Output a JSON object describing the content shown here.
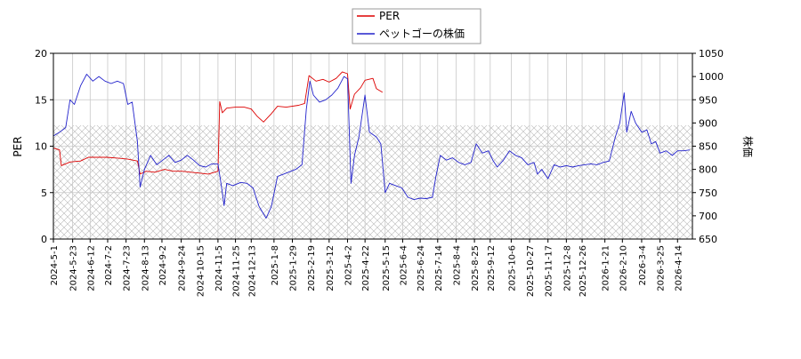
{
  "chart_data": {
    "type": "line",
    "xlabel": "",
    "ylabel_left": "PER",
    "ylabel_right": "株価",
    "ylim_left": [
      0,
      20
    ],
    "ylim_right": [
      650,
      1050
    ],
    "yticks_left": [
      0,
      5,
      10,
      15,
      20
    ],
    "yticks_right": [
      650,
      700,
      750,
      800,
      850,
      900,
      950,
      1000,
      1050
    ],
    "xlim": [
      "2024-05-01",
      "2026-05-01"
    ],
    "xticks": [
      "2024-5-1",
      "2024-5-23",
      "2024-6-12",
      "2024-7-2",
      "2024-7-23",
      "2024-8-13",
      "2024-9-2",
      "2024-9-24",
      "2024-10-15",
      "2024-11-5",
      "2024-11-25",
      "2024-12-13",
      "2025-1-8",
      "2025-1-29",
      "2025-2-19",
      "2025-3-12",
      "2025-4-2",
      "2025-4-22",
      "2025-5-15",
      "2025-6-4",
      "2025-6-24",
      "2025-7-14",
      "2025-8-4",
      "2025-8-25",
      "2025-9-12",
      "2025-10-6",
      "2025-10-27",
      "2025-11-17",
      "2025-12-8",
      "2025-12-26",
      "2026-1-21",
      "2026-2-10",
      "2026-3-4",
      "2026-3-25",
      "2026-4-14"
    ],
    "grid": true,
    "legend_position": "top-center",
    "hatched_band": [
      650,
      895
    ],
    "series": [
      {
        "name": "PER",
        "axis": "left",
        "color": "#dd0000",
        "points": [
          [
            "2024-05-01",
            9.8
          ],
          [
            "2024-05-08",
            9.6
          ],
          [
            "2024-05-10",
            7.9
          ],
          [
            "2024-05-20",
            8.3
          ],
          [
            "2024-06-01",
            8.4
          ],
          [
            "2024-06-10",
            8.8
          ],
          [
            "2024-06-20",
            8.8
          ],
          [
            "2024-07-01",
            8.8
          ],
          [
            "2024-07-15",
            8.7
          ],
          [
            "2024-07-25",
            8.6
          ],
          [
            "2024-08-05",
            8.4
          ],
          [
            "2024-08-08",
            7.0
          ],
          [
            "2024-08-15",
            7.3
          ],
          [
            "2024-08-25",
            7.2
          ],
          [
            "2024-09-05",
            7.5
          ],
          [
            "2024-09-15",
            7.3
          ],
          [
            "2024-09-25",
            7.3
          ],
          [
            "2024-10-05",
            7.2
          ],
          [
            "2024-10-15",
            7.1
          ],
          [
            "2024-10-25",
            7.0
          ],
          [
            "2024-11-05",
            7.3
          ],
          [
            "2024-11-07",
            14.8
          ],
          [
            "2024-11-10",
            13.6
          ],
          [
            "2024-11-15",
            14.1
          ],
          [
            "2024-11-25",
            14.2
          ],
          [
            "2024-12-05",
            14.2
          ],
          [
            "2024-12-13",
            14.0
          ],
          [
            "2024-12-20",
            13.2
          ],
          [
            "2024-12-27",
            12.6
          ],
          [
            "2025-01-05",
            13.5
          ],
          [
            "2025-01-12",
            14.3
          ],
          [
            "2025-01-22",
            14.2
          ],
          [
            "2025-02-05",
            14.4
          ],
          [
            "2025-02-12",
            14.6
          ],
          [
            "2025-02-17",
            17.6
          ],
          [
            "2025-02-25",
            17.0
          ],
          [
            "2025-03-05",
            17.2
          ],
          [
            "2025-03-12",
            16.9
          ],
          [
            "2025-03-20",
            17.3
          ],
          [
            "2025-03-27",
            18.0
          ],
          [
            "2025-04-02",
            17.8
          ],
          [
            "2025-04-05",
            14.0
          ],
          [
            "2025-04-10",
            15.6
          ],
          [
            "2025-04-17",
            16.3
          ],
          [
            "2025-04-22",
            17.1
          ],
          [
            "2025-05-01",
            17.3
          ],
          [
            "2025-05-05",
            16.2
          ],
          [
            "2025-05-12",
            15.8
          ]
        ]
      },
      {
        "name": "ペットゴーの株価",
        "axis": "right",
        "color": "#2222cc",
        "points": [
          [
            "2024-05-01",
            872
          ],
          [
            "2024-05-08",
            880
          ],
          [
            "2024-05-15",
            890
          ],
          [
            "2024-05-20",
            950
          ],
          [
            "2024-05-25",
            940
          ],
          [
            "2024-06-01",
            980
          ],
          [
            "2024-06-08",
            1005
          ],
          [
            "2024-06-15",
            990
          ],
          [
            "2024-06-22",
            1000
          ],
          [
            "2024-06-29",
            990
          ],
          [
            "2024-07-06",
            985
          ],
          [
            "2024-07-13",
            990
          ],
          [
            "2024-07-20",
            985
          ],
          [
            "2024-07-25",
            940
          ],
          [
            "2024-07-30",
            945
          ],
          [
            "2024-08-05",
            860
          ],
          [
            "2024-08-08",
            762
          ],
          [
            "2024-08-13",
            800
          ],
          [
            "2024-08-20",
            830
          ],
          [
            "2024-08-27",
            810
          ],
          [
            "2024-09-03",
            820
          ],
          [
            "2024-09-10",
            830
          ],
          [
            "2024-09-17",
            815
          ],
          [
            "2024-09-24",
            820
          ],
          [
            "2024-10-01",
            830
          ],
          [
            "2024-10-08",
            820
          ],
          [
            "2024-10-15",
            808
          ],
          [
            "2024-10-22",
            805
          ],
          [
            "2024-10-29",
            812
          ],
          [
            "2024-11-05",
            812
          ],
          [
            "2024-11-08",
            775
          ],
          [
            "2024-11-12",
            722
          ],
          [
            "2024-11-15",
            770
          ],
          [
            "2024-11-22",
            765
          ],
          [
            "2024-12-01",
            772
          ],
          [
            "2024-12-08",
            770
          ],
          [
            "2024-12-15",
            760
          ],
          [
            "2024-12-22",
            720
          ],
          [
            "2024-12-30",
            695
          ],
          [
            "2025-01-05",
            720
          ],
          [
            "2025-01-12",
            785
          ],
          [
            "2025-01-19",
            790
          ],
          [
            "2025-01-26",
            795
          ],
          [
            "2025-02-02",
            800
          ],
          [
            "2025-02-09",
            810
          ],
          [
            "2025-02-14",
            930
          ],
          [
            "2025-02-18",
            990
          ],
          [
            "2025-02-22",
            960
          ],
          [
            "2025-03-01",
            945
          ],
          [
            "2025-03-08",
            950
          ],
          [
            "2025-03-15",
            960
          ],
          [
            "2025-03-22",
            975
          ],
          [
            "2025-03-29",
            1000
          ],
          [
            "2025-04-02",
            995
          ],
          [
            "2025-04-06",
            770
          ],
          [
            "2025-04-10",
            830
          ],
          [
            "2025-04-15",
            870
          ],
          [
            "2025-04-22",
            960
          ],
          [
            "2025-04-27",
            880
          ],
          [
            "2025-05-05",
            870
          ],
          [
            "2025-05-10",
            855
          ],
          [
            "2025-05-15",
            750
          ],
          [
            "2025-05-20",
            770
          ],
          [
            "2025-05-27",
            765
          ],
          [
            "2025-06-03",
            760
          ],
          [
            "2025-06-10",
            740
          ],
          [
            "2025-06-17",
            735
          ],
          [
            "2025-06-24",
            738
          ],
          [
            "2025-07-01",
            737
          ],
          [
            "2025-07-08",
            740
          ],
          [
            "2025-07-12",
            785
          ],
          [
            "2025-07-17",
            830
          ],
          [
            "2025-07-24",
            820
          ],
          [
            "2025-07-31",
            825
          ],
          [
            "2025-08-07",
            815
          ],
          [
            "2025-08-14",
            810
          ],
          [
            "2025-08-21",
            815
          ],
          [
            "2025-08-27",
            855
          ],
          [
            "2025-09-03",
            835
          ],
          [
            "2025-09-10",
            840
          ],
          [
            "2025-09-15",
            820
          ],
          [
            "2025-09-20",
            805
          ],
          [
            "2025-09-27",
            820
          ],
          [
            "2025-10-04",
            840
          ],
          [
            "2025-10-11",
            830
          ],
          [
            "2025-10-18",
            825
          ],
          [
            "2025-10-25",
            810
          ],
          [
            "2025-11-01",
            815
          ],
          [
            "2025-11-05",
            790
          ],
          [
            "2025-11-10",
            800
          ],
          [
            "2025-11-17",
            780
          ],
          [
            "2025-11-24",
            810
          ],
          [
            "2025-12-01",
            805
          ],
          [
            "2025-12-08",
            808
          ],
          [
            "2025-12-15",
            805
          ],
          [
            "2025-12-22",
            808
          ],
          [
            "2025-12-29",
            810
          ],
          [
            "2026-01-05",
            812
          ],
          [
            "2026-01-12",
            810
          ],
          [
            "2026-01-19",
            815
          ],
          [
            "2026-01-26",
            818
          ],
          [
            "2026-02-02",
            870
          ],
          [
            "2026-02-07",
            900
          ],
          [
            "2026-02-12",
            965
          ],
          [
            "2026-02-15",
            880
          ],
          [
            "2026-02-20",
            925
          ],
          [
            "2026-02-25",
            900
          ],
          [
            "2026-03-04",
            880
          ],
          [
            "2026-03-10",
            885
          ],
          [
            "2026-03-15",
            855
          ],
          [
            "2026-03-20",
            860
          ],
          [
            "2026-03-25",
            835
          ],
          [
            "2026-04-01",
            840
          ],
          [
            "2026-04-08",
            830
          ],
          [
            "2026-04-14",
            840
          ],
          [
            "2026-04-21",
            840
          ],
          [
            "2026-04-28",
            842
          ]
        ]
      }
    ]
  }
}
